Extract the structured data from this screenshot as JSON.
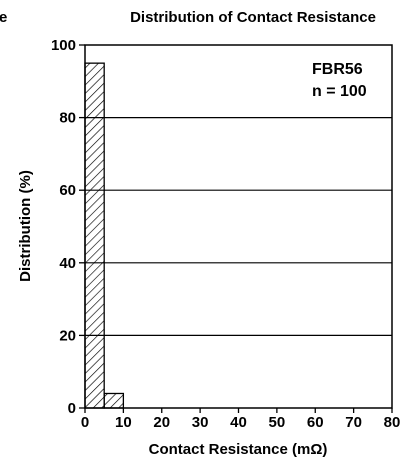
{
  "cut_text": "e",
  "chart_data": {
    "type": "bar",
    "title": "Distribution of Contact Resistance",
    "xlabel": "Contact Resistance (mΩ)",
    "ylabel": "Distribution (%)",
    "annotation": [
      "FBR56",
      "n = 100"
    ],
    "xlim": [
      0,
      80
    ],
    "ylim": [
      0,
      100
    ],
    "xticks": [
      "0",
      "10",
      "20",
      "30",
      "40",
      "50",
      "60",
      "70",
      "80"
    ],
    "yticks": [
      "0",
      "20",
      "40",
      "60",
      "80",
      "100"
    ],
    "gridlines_y": [
      20,
      40,
      60,
      80
    ],
    "bins": [
      {
        "from": 0,
        "to": 5,
        "value": 95
      },
      {
        "from": 5,
        "to": 10,
        "value": 4
      }
    ],
    "bar_fill": "hatched",
    "grid": true
  }
}
